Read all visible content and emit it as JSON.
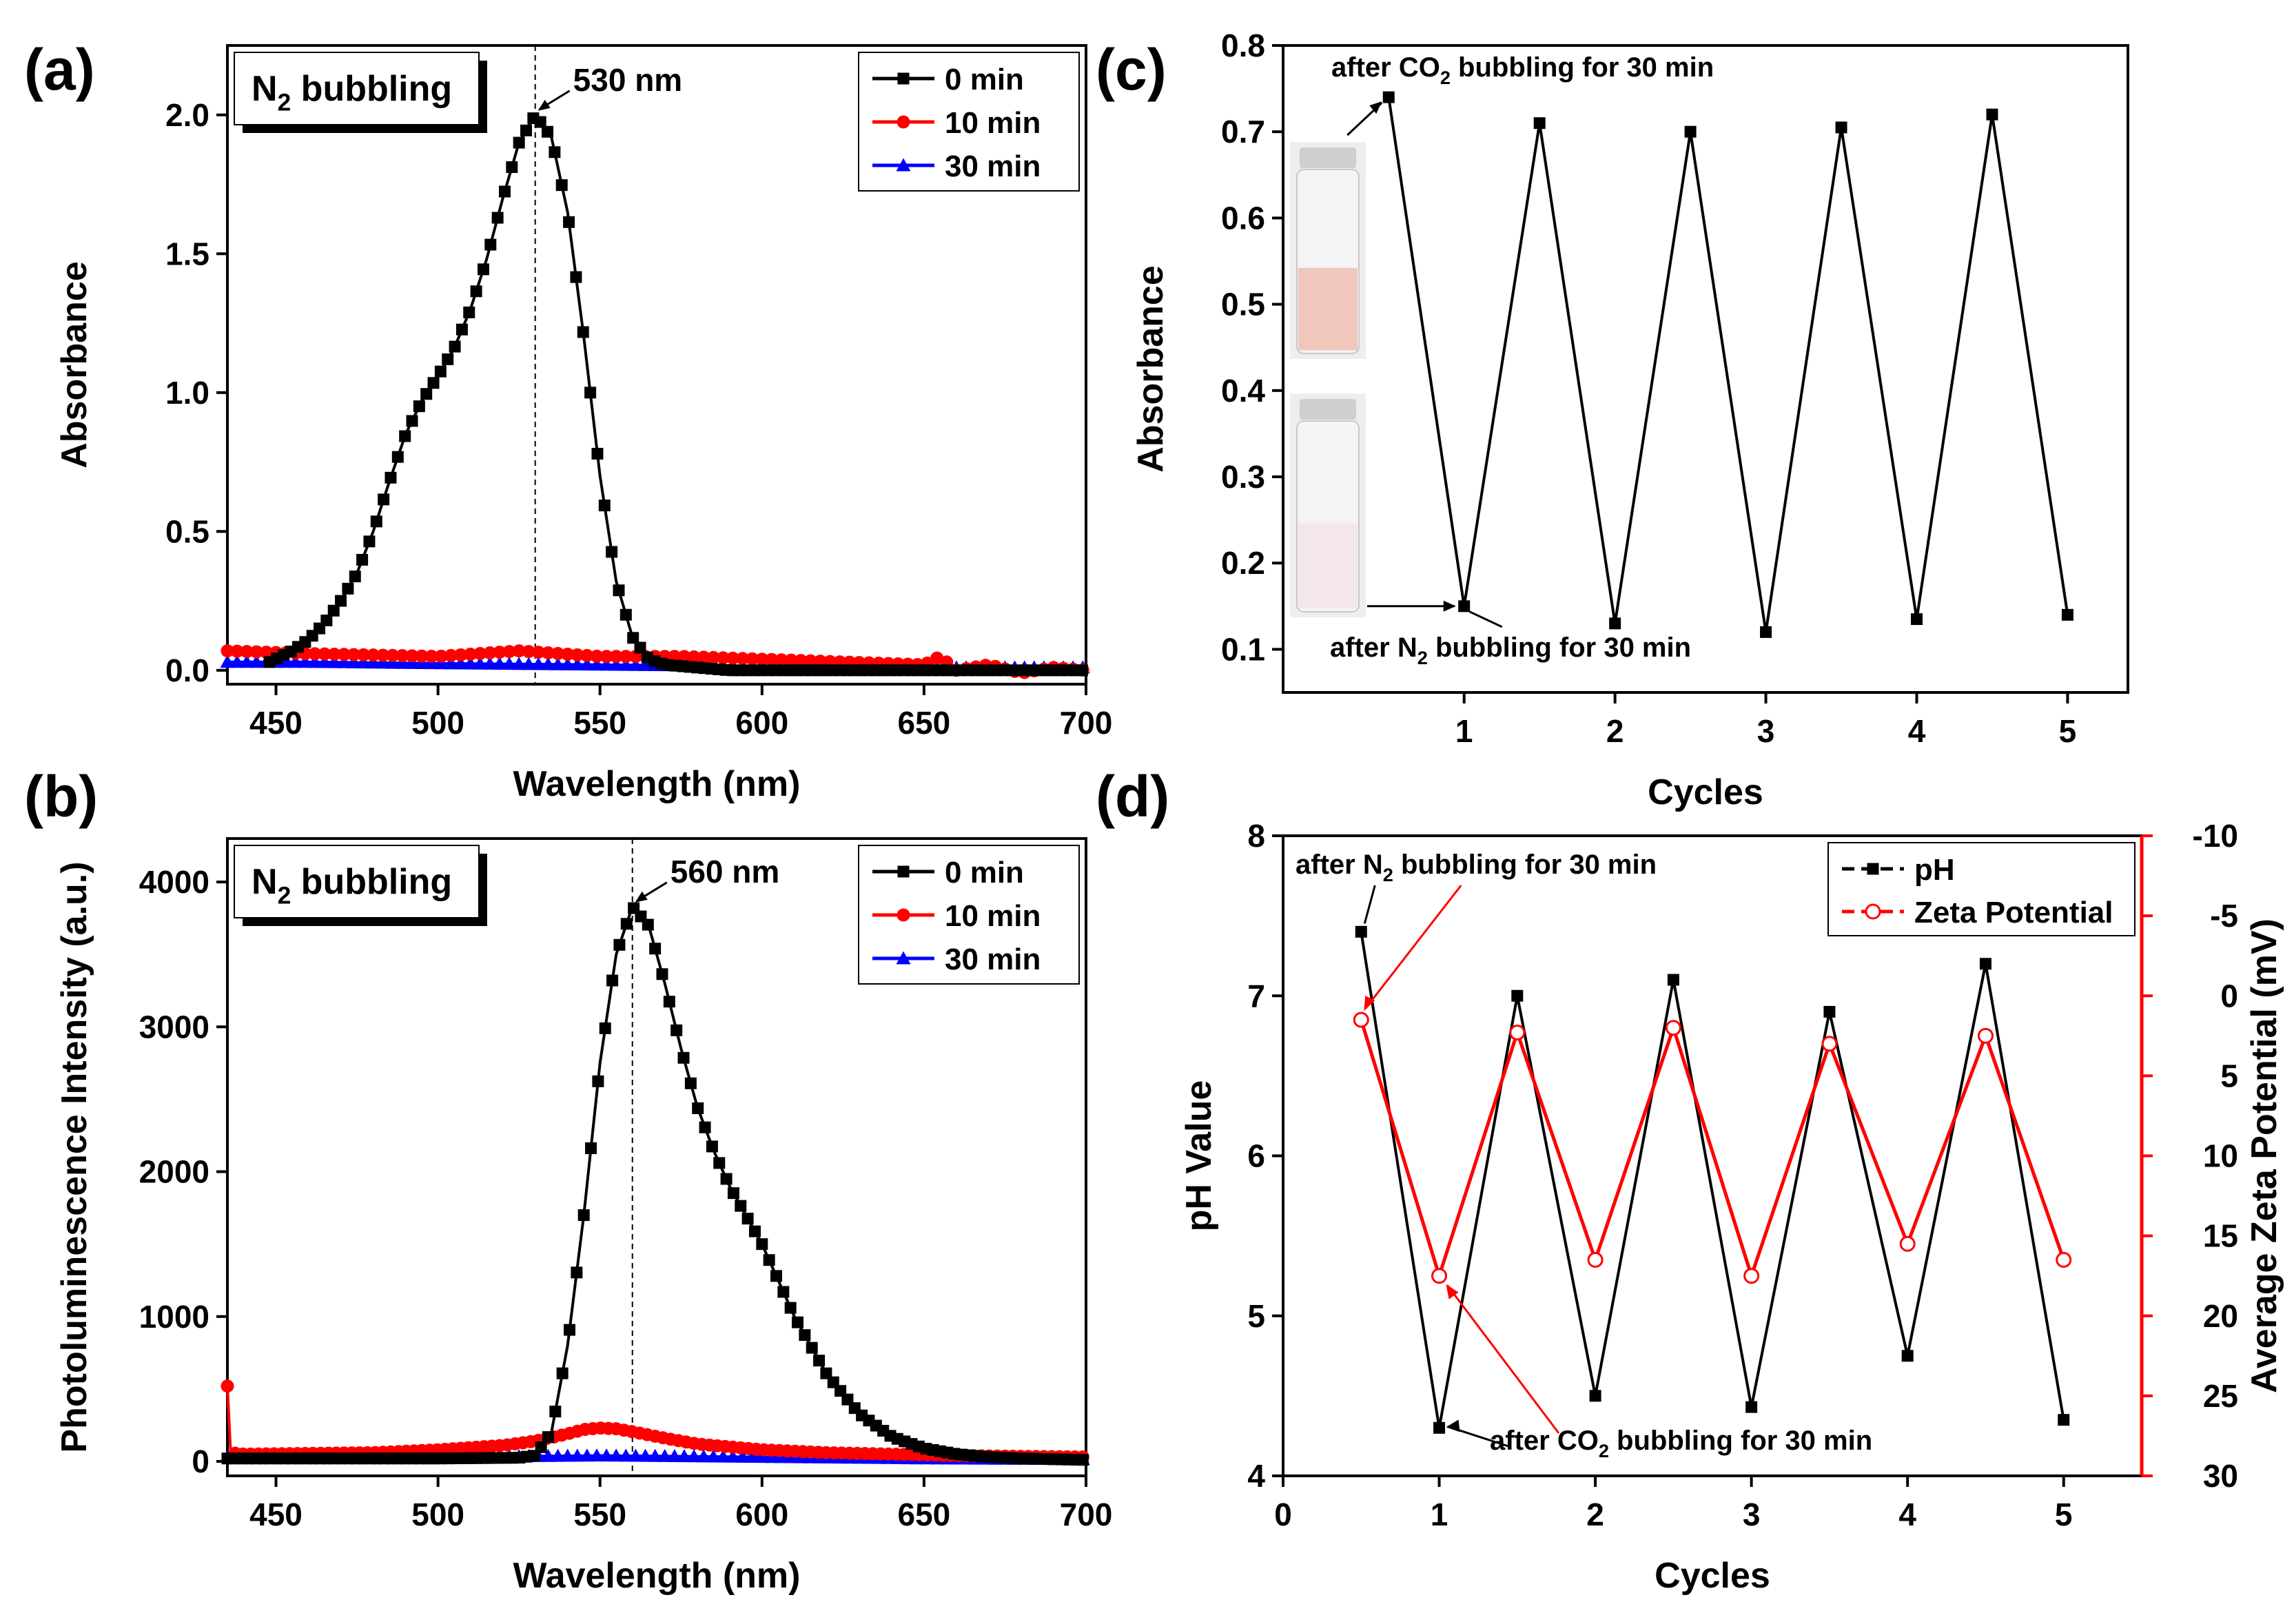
{
  "figure": {
    "panels": {
      "a": "(a)",
      "b": "(b)",
      "c": "(c)",
      "d": "(d)"
    }
  },
  "chart_data": [
    {
      "id": "a",
      "type": "line",
      "panel_label": "(a)",
      "xlabel": "Wavelength (nm)",
      "ylabel": "Absorbance",
      "xlim": [
        435,
        700
      ],
      "ylim": [
        -0.05,
        2.25
      ],
      "xticks": [
        450,
        500,
        550,
        600,
        650,
        700
      ],
      "yticks": [
        0.0,
        0.5,
        1.0,
        1.5,
        2.0
      ],
      "tick_decimals": 1,
      "box_label": [
        "N",
        "2",
        " bubbling"
      ],
      "peak": {
        "x": 530,
        "y": 2.0,
        "label": "530 nm"
      },
      "legend": [
        "0 min",
        "10 min",
        "30 min"
      ],
      "series": [
        {
          "name": "0 min",
          "color": "#000000",
          "marker": "square",
          "x": [
            448,
            455,
            460,
            465,
            470,
            475,
            480,
            485,
            490,
            495,
            500,
            505,
            510,
            515,
            520,
            525,
            530,
            535,
            540,
            545,
            550,
            555,
            560,
            565,
            570,
            580,
            590,
            600,
            620,
            640,
            660,
            680,
            700
          ],
          "y": [
            0.03,
            0.07,
            0.11,
            0.17,
            0.25,
            0.35,
            0.5,
            0.68,
            0.85,
            0.97,
            1.06,
            1.16,
            1.3,
            1.48,
            1.7,
            1.9,
            2.0,
            1.92,
            1.65,
            1.2,
            0.7,
            0.32,
            0.12,
            0.04,
            0.02,
            0.01,
            0.0,
            0.0,
            0.0,
            0.0,
            0.0,
            0.0,
            0.0
          ]
        },
        {
          "name": "10 min",
          "color": "#ff0000",
          "marker": "circle",
          "x": [
            435,
            460,
            500,
            525,
            550,
            575,
            600,
            625,
            650,
            655,
            660,
            670,
            680,
            690,
            700
          ],
          "y": [
            0.07,
            0.06,
            0.05,
            0.07,
            0.05,
            0.05,
            0.04,
            0.03,
            0.02,
            0.05,
            0.0,
            0.02,
            -0.01,
            0.01,
            0.0
          ]
        },
        {
          "name": "30 min",
          "color": "#0000ff",
          "marker": "triangle",
          "x": [
            435,
            460,
            500,
            550,
            600,
            650,
            700
          ],
          "y": [
            0.03,
            0.03,
            0.025,
            0.02,
            0.015,
            0.01,
            0.01
          ]
        }
      ]
    },
    {
      "id": "b",
      "type": "line",
      "panel_label": "(b)",
      "xlabel": "Wavelength (nm)",
      "ylabel": "Photoluminescence Intensity (a.u.)",
      "xlim": [
        435,
        700
      ],
      "ylim": [
        -100,
        4300
      ],
      "xticks": [
        450,
        500,
        550,
        600,
        650,
        700
      ],
      "yticks": [
        0,
        1000,
        2000,
        3000,
        4000
      ],
      "tick_decimals": 0,
      "box_label": [
        "N",
        "2",
        " bubbling"
      ],
      "peak": {
        "x": 560,
        "y": 3830,
        "label": "560 nm"
      },
      "legend": [
        "0 min",
        "10 min",
        "30 min"
      ],
      "series": [
        {
          "name": "0 min",
          "color": "#000000",
          "marker": "square",
          "x": [
            435,
            500,
            525,
            530,
            535,
            540,
            545,
            550,
            555,
            560,
            565,
            570,
            575,
            580,
            585,
            590,
            595,
            600,
            605,
            610,
            620,
            630,
            640,
            650,
            660,
            670,
            680,
            690,
            700
          ],
          "y": [
            20,
            20,
            25,
            40,
            200,
            800,
            1700,
            2750,
            3500,
            3830,
            3700,
            3300,
            2850,
            2450,
            2150,
            1900,
            1700,
            1500,
            1250,
            1000,
            600,
            330,
            170,
            90,
            50,
            30,
            20,
            15,
            10
          ]
        },
        {
          "name": "10 min",
          "color": "#ff0000",
          "marker": "circle",
          "x": [
            435,
            436,
            440,
            480,
            500,
            520,
            530,
            540,
            545,
            550,
            555,
            560,
            570,
            580,
            600,
            620,
            640,
            660,
            680,
            700
          ],
          "y": [
            520,
            60,
            50,
            60,
            80,
            110,
            140,
            190,
            220,
            230,
            225,
            205,
            160,
            120,
            80,
            60,
            50,
            40,
            35,
            30
          ]
        },
        {
          "name": "30 min",
          "color": "#0000ff",
          "marker": "triangle",
          "x": [
            435,
            500,
            550,
            600,
            650,
            700
          ],
          "y": [
            30,
            30,
            40,
            30,
            20,
            15
          ]
        }
      ]
    },
    {
      "id": "c",
      "type": "line",
      "panel_label": "(c)",
      "xlabel": "Cycles",
      "ylabel": "Absorbance",
      "xlim": [
        -0.2,
        5.4
      ],
      "ylim": [
        0.05,
        0.8
      ],
      "xticks": [
        1,
        2,
        3,
        4,
        5
      ],
      "yticks": [
        0.1,
        0.2,
        0.3,
        0.4,
        0.5,
        0.6,
        0.7,
        0.8
      ],
      "tick_decimals": 1,
      "annotations": {
        "top": [
          "after CO",
          "2",
          " bubbling for 30 min"
        ],
        "bottom": [
          "after N",
          "2",
          " bubbling for 30 min"
        ]
      },
      "series": [
        {
          "name": "Absorbance",
          "color": "#000000",
          "marker": "square",
          "x": [
            0.5,
            1,
            1.5,
            2,
            2.5,
            3,
            3.5,
            4,
            4.5,
            5
          ],
          "y": [
            0.74,
            0.15,
            0.71,
            0.13,
            0.7,
            0.12,
            0.705,
            0.135,
            0.72,
            0.14
          ]
        }
      ]
    },
    {
      "id": "d",
      "type": "line",
      "panel_label": "(d)",
      "xlabel": "Cycles",
      "ylabel": "pH Value",
      "ylabel_right": "Average Zeta Potential (mV)",
      "xlim": [
        0,
        5.5
      ],
      "ylim": [
        4,
        8
      ],
      "ylim_right": [
        -10,
        30
      ],
      "xticks": [
        0,
        1,
        2,
        3,
        4,
        5
      ],
      "yticks": [
        4,
        5,
        6,
        7,
        8
      ],
      "yticks_right": [
        -10,
        -5,
        0,
        5,
        10,
        15,
        20,
        25,
        30
      ],
      "tick_decimals": 0,
      "legend": [
        "pH",
        "Zeta Potential"
      ],
      "annotations": {
        "top": [
          "after N",
          "2",
          " bubbling for 30 min"
        ],
        "bottom": [
          "after CO",
          "2",
          " bubbling for 30 min"
        ]
      },
      "series": [
        {
          "name": "pH",
          "color": "#000000",
          "marker": "square",
          "axis": "left",
          "x": [
            0.5,
            1,
            1.5,
            2,
            2.5,
            3,
            3.5,
            4,
            4.5,
            5
          ],
          "y": [
            7.4,
            4.3,
            7.0,
            4.5,
            7.1,
            4.43,
            6.9,
            4.75,
            7.2,
            4.35
          ]
        },
        {
          "name": "Zeta Potential",
          "color": "#ff0000",
          "marker": "open-circle",
          "axis": "right",
          "x": [
            0.5,
            1,
            1.5,
            2,
            2.5,
            3,
            3.5,
            4,
            4.5,
            5
          ],
          "y": [
            1.5,
            17.5,
            2.3,
            16.5,
            2.0,
            17.5,
            3.0,
            15.5,
            2.5,
            16.5
          ]
        }
      ]
    }
  ]
}
